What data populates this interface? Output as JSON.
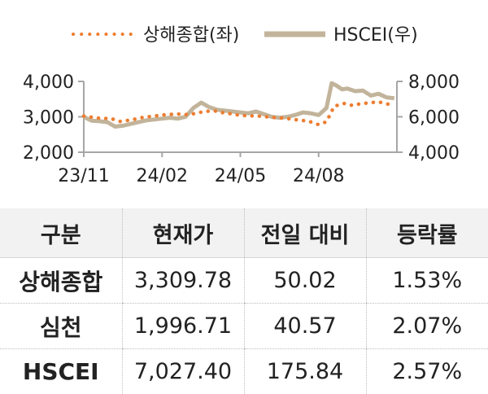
{
  "chart_data": {
    "type": "line",
    "legend_placement": "top",
    "x_ticks": [
      "23/11",
      "24/02",
      "24/05",
      "24/08"
    ],
    "x_tick_positions": [
      0,
      3,
      6,
      9
    ],
    "x_range": [
      0,
      12
    ],
    "y_left": {
      "lim": [
        2000,
        4000
      ],
      "ticks": [
        "4,000",
        "3,000",
        "2,000"
      ],
      "tick_values": [
        4000,
        3000,
        2000
      ]
    },
    "y_right": {
      "lim": [
        4000,
        8000
      ],
      "ticks": [
        "8,000",
        "6,000",
        "4,000"
      ],
      "tick_values": [
        8000,
        6000,
        4000
      ]
    },
    "series": [
      {
        "name": "상해종합(좌)",
        "axis": "left",
        "style": "dotted",
        "color": "#ed7d31",
        "x": [
          0,
          0.3,
          0.7,
          1.0,
          1.4,
          1.7,
          2.0,
          2.3,
          2.7,
          3.0,
          3.3,
          3.7,
          4.0,
          4.3,
          4.6,
          5.0,
          5.3,
          5.7,
          6.0,
          6.3,
          6.7,
          7.0,
          7.3,
          7.7,
          8.0,
          8.3,
          8.6,
          9.0,
          9.3,
          9.6,
          10.0,
          10.3,
          10.6,
          11.0,
          11.3,
          11.6,
          11.9
        ],
        "y": [
          3020,
          2990,
          2950,
          2960,
          2870,
          2900,
          2940,
          2990,
          3020,
          3050,
          3070,
          3080,
          3060,
          3100,
          3150,
          3170,
          3120,
          3080,
          3040,
          3030,
          3020,
          3000,
          2980,
          2960,
          2930,
          2900,
          2880,
          2780,
          2860,
          3300,
          3380,
          3320,
          3370,
          3400,
          3420,
          3370,
          3310
        ]
      },
      {
        "name": "HSCEI(우)",
        "axis": "right",
        "style": "solid",
        "color": "#c2b49b",
        "x": [
          0,
          0.3,
          0.6,
          0.9,
          1.2,
          1.5,
          1.8,
          2.1,
          2.4,
          2.7,
          3.0,
          3.3,
          3.6,
          3.9,
          4.2,
          4.5,
          4.8,
          5.1,
          5.4,
          5.7,
          6.0,
          6.3,
          6.6,
          6.9,
          7.2,
          7.5,
          7.8,
          8.1,
          8.4,
          8.7,
          9.0,
          9.3,
          9.5,
          9.7,
          9.9,
          10.1,
          10.4,
          10.7,
          11.0,
          11.3,
          11.6,
          11.9
        ],
        "y": [
          6000,
          5780,
          5750,
          5700,
          5450,
          5500,
          5600,
          5700,
          5800,
          5850,
          5900,
          5950,
          5900,
          6000,
          6500,
          6800,
          6550,
          6400,
          6350,
          6300,
          6250,
          6200,
          6300,
          6150,
          6000,
          5950,
          6000,
          6100,
          6250,
          6200,
          6100,
          6500,
          7900,
          7750,
          7550,
          7600,
          7450,
          7480,
          7200,
          7300,
          7100,
          7050
        ]
      }
    ]
  },
  "table": {
    "headers": [
      "구분",
      "현재가",
      "전일 대비",
      "등락률"
    ],
    "rows": [
      [
        "상해종합",
        "3,309.78",
        "50.02",
        "1.53%"
      ],
      [
        "심천",
        "1,996.71",
        "40.57",
        "2.07%"
      ],
      [
        "HSCEI",
        "7,027.40",
        "175.84",
        "2.57%"
      ]
    ]
  }
}
